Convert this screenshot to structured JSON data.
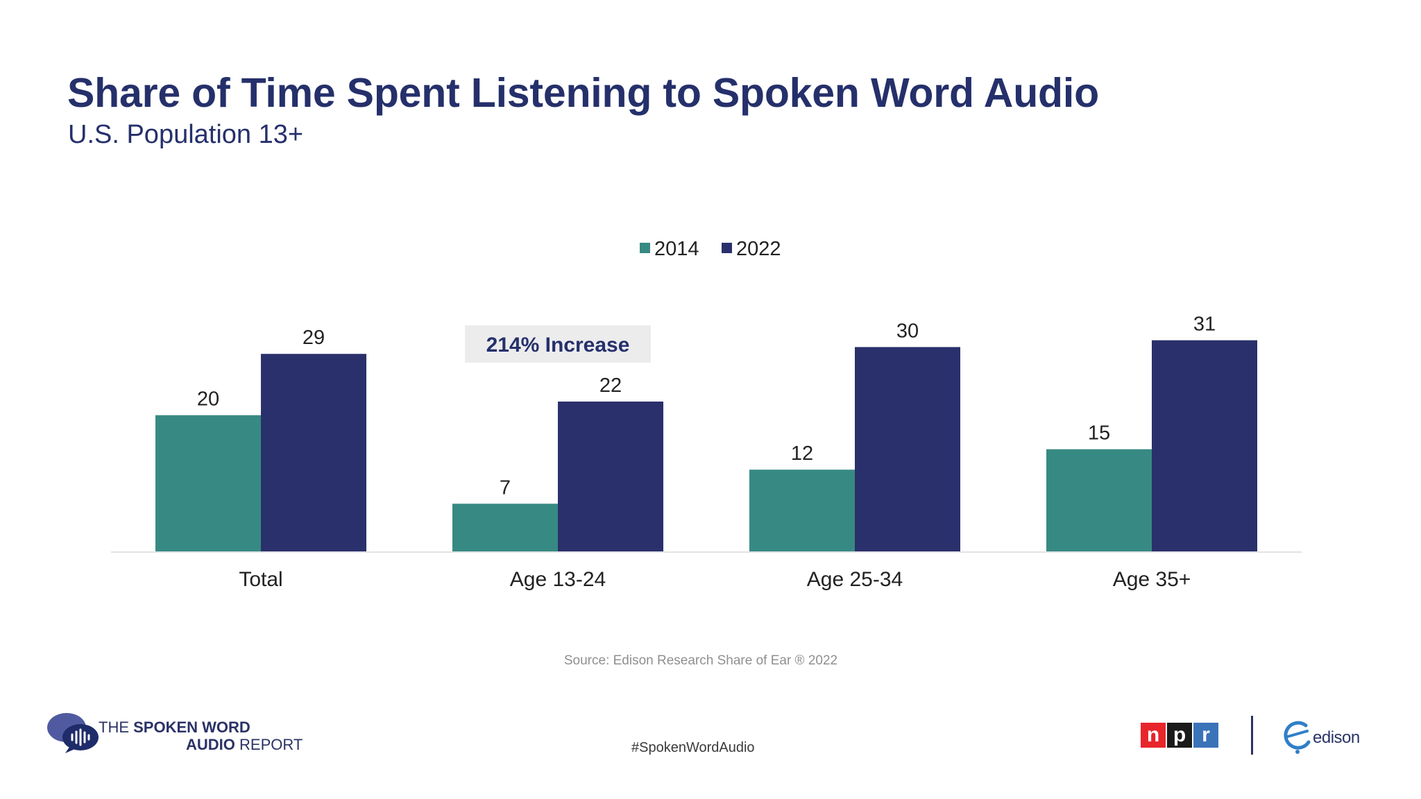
{
  "header": {
    "title": "Share of Time Spent Listening to Spoken Word Audio",
    "subtitle": "U.S. Population 13+"
  },
  "colors": {
    "title": "#25306b",
    "series_2014": "#378a83",
    "series_2022": "#2a306b",
    "callout_bg": "#ececed",
    "npr_red": "#e8252b",
    "npr_black": "#1a1a1a",
    "npr_blue": "#3b73b9"
  },
  "chart_data": {
    "type": "bar",
    "title": "Share of Time Spent Listening to Spoken Word Audio",
    "subtitle": "U.S. Population 13+",
    "categories": [
      "Total",
      "Age 13-24",
      "Age 25-34",
      "Age 35+"
    ],
    "series": [
      {
        "name": "2014",
        "values": [
          20,
          7,
          12,
          15
        ]
      },
      {
        "name": "2022",
        "values": [
          29,
          22,
          30,
          31
        ]
      }
    ],
    "xlabel": "",
    "ylabel": "",
    "ylim": [
      0,
      31
    ],
    "grid": false,
    "legend_position": "top-center",
    "annotations": [
      {
        "text": "214% Increase",
        "category": "Age 13-24"
      }
    ]
  },
  "footer": {
    "source": "Source: Edison Research Share of Ear ® 2022",
    "hashtag": "#SpokenWordAudio",
    "report_logo": {
      "line1_a": "THE ",
      "line1_b": "SPOKEN WORD",
      "line2_a": "AUDIO",
      "line2_b": " REPORT"
    },
    "npr_letters": [
      "n",
      "p",
      "r"
    ],
    "edison_name": "edison",
    "icons": [
      "speech-bubble-icon",
      "soundwave-icon",
      "edison-e-icon"
    ]
  }
}
